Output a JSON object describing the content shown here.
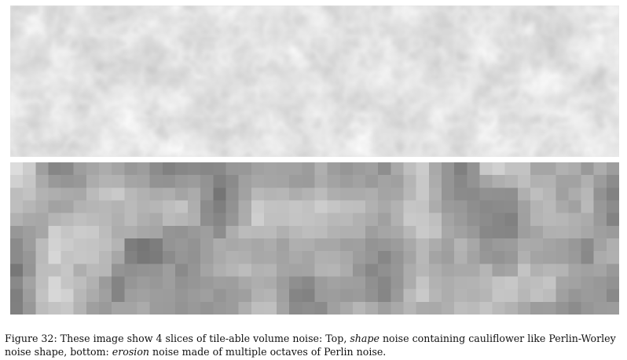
{
  "figure": {
    "panels": [
      {
        "kind": "shape",
        "tone": "light",
        "noise": "Perlin-Worley"
      },
      {
        "kind": "erosion",
        "tone": "mid",
        "noise": "Perlin"
      }
    ],
    "colors": {
      "background": "#ffffff",
      "top_base": "#ebebeb",
      "bottom_base": "#9c9c9c"
    },
    "caption": {
      "line1_pre": "Figure 32: These image show 4 slices of tile-able volume noise: Top, ",
      "line1_em": "shape",
      "line1_post": " noise containing cauliflower like Perlin-Worley",
      "line2_pre": "noise shape, bottom: ",
      "line2_em": "erosion",
      "line2_post": " noise made of multiple octaves of Perlin noise."
    }
  }
}
